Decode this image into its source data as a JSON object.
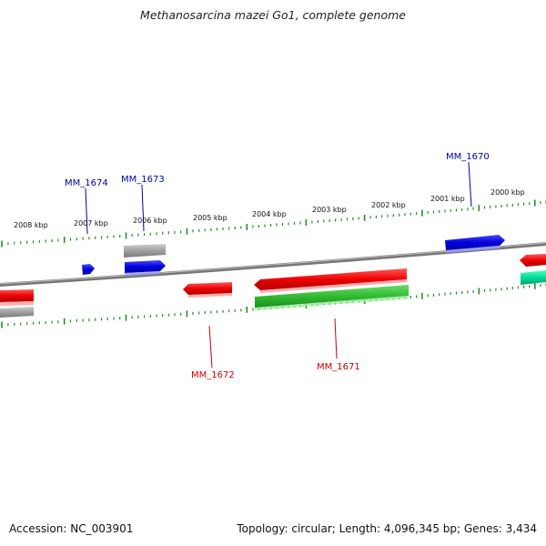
{
  "title": "Methanosarcina mazei Go1, complete genome",
  "footer": {
    "accession": "Accession: NC_003901",
    "summary": "Topology: circular; Length: 4,096,345 bp; Genes: 3,434"
  },
  "colors": {
    "forward_gene": "#0000dd",
    "reverse_gene": "#ee0000",
    "rna": "#33bb33",
    "pseudo": "#a0a0a0",
    "teal": "#00dd99",
    "tick": "#2a8a2a",
    "backbone": "#888888"
  },
  "ruler": {
    "labels": [
      {
        "text": "2008 kbp",
        "kbp": 2008
      },
      {
        "text": "2007 kbp",
        "kbp": 2007
      },
      {
        "text": "2006 kbp",
        "kbp": 2006
      },
      {
        "text": "2005 kbp",
        "kbp": 2005
      },
      {
        "text": "2004 kbp",
        "kbp": 2004
      },
      {
        "text": "2003 kbp",
        "kbp": 2003
      },
      {
        "text": "2002 kbp",
        "kbp": 2002
      },
      {
        "text": "2001 kbp",
        "kbp": 2001
      },
      {
        "text": "2000 kbp",
        "kbp": 2000
      }
    ]
  },
  "gene_labels": [
    {
      "text": "MM_1674",
      "strand": "forward"
    },
    {
      "text": "MM_1673",
      "strand": "forward"
    },
    {
      "text": "MM_1670",
      "strand": "forward"
    },
    {
      "text": "MM_1672",
      "strand": "reverse"
    },
    {
      "text": "MM_1671",
      "strand": "reverse"
    }
  ]
}
